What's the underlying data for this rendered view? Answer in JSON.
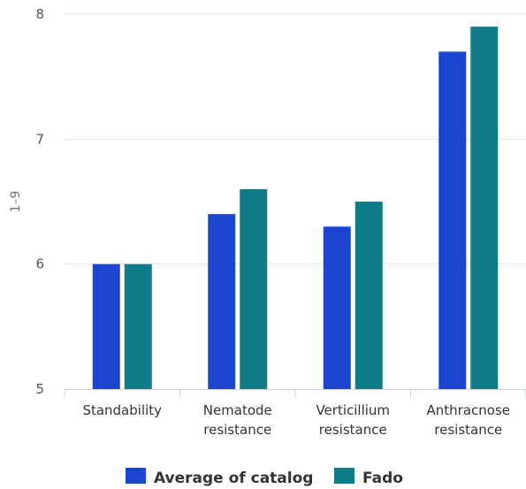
{
  "chart_data": {
    "type": "bar",
    "categories": [
      [
        "Standability"
      ],
      [
        "Nematode",
        "resistance"
      ],
      [
        "Verticillium",
        "resistance"
      ],
      [
        "Anthracnose",
        "resistance"
      ]
    ],
    "series": [
      {
        "name": "Average of catalog",
        "values": [
          6.0,
          6.4,
          6.3,
          7.7
        ],
        "color": "#1c46d0"
      },
      {
        "name": "Fado",
        "values": [
          6.0,
          6.6,
          6.5,
          7.9
        ],
        "color": "#0e7d87"
      }
    ],
    "ylabel": "1–9",
    "ylim": [
      5,
      8
    ],
    "yticks": [
      "5",
      "6",
      "7",
      "8"
    ],
    "grid": true,
    "legend": "bottom-center"
  }
}
